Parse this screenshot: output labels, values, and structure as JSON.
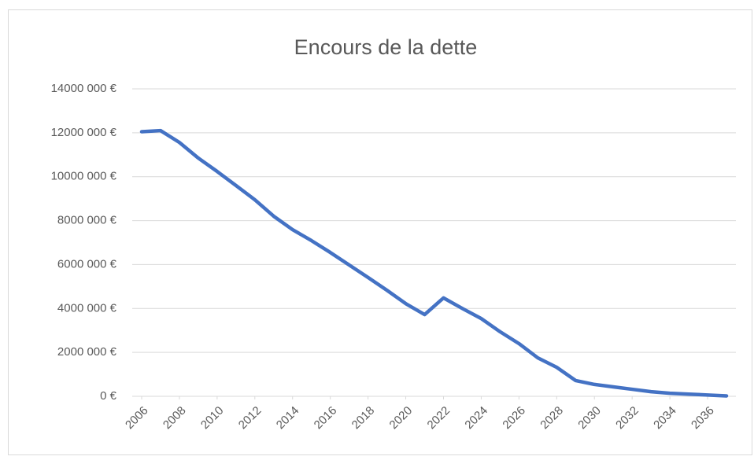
{
  "chart_data": {
    "type": "line",
    "title": "Encours de la dette",
    "x": [
      2006,
      2007,
      2008,
      2009,
      2010,
      2011,
      2012,
      2013,
      2014,
      2015,
      2016,
      2017,
      2018,
      2019,
      2020,
      2021,
      2022,
      2023,
      2024,
      2025,
      2026,
      2027,
      2028,
      2029,
      2030,
      2031,
      2032,
      2033,
      2034,
      2035,
      2036,
      2037
    ],
    "series": [
      {
        "name": "Encours de la dette",
        "color": "#4472c4",
        "values": [
          12050000,
          12100000,
          11560000,
          10850000,
          10240000,
          9600000,
          8950000,
          8200000,
          7590000,
          7090000,
          6550000,
          5980000,
          5410000,
          4830000,
          4220000,
          3720000,
          4480000,
          4000000,
          3540000,
          2940000,
          2400000,
          1750000,
          1320000,
          720000,
          540000,
          430000,
          320000,
          210000,
          140000,
          100000,
          60000,
          20000
        ]
      }
    ],
    "xlim": [
      2005.5,
      2037.5
    ],
    "xticks": [
      2006,
      2008,
      2010,
      2012,
      2014,
      2016,
      2018,
      2020,
      2022,
      2024,
      2026,
      2028,
      2030,
      2032,
      2034,
      2036
    ],
    "ylim": [
      0,
      14000000
    ],
    "yticks": [
      {
        "value": 0,
        "label": "0 €"
      },
      {
        "value": 2000000,
        "label": "2000 000 €"
      },
      {
        "value": 4000000,
        "label": "4000 000 €"
      },
      {
        "value": 6000000,
        "label": "6000 000 €"
      },
      {
        "value": 8000000,
        "label": "8000 000 €"
      },
      {
        "value": 10000000,
        "label": "10000 000 €"
      },
      {
        "value": 12000000,
        "label": "12000 000 €"
      },
      {
        "value": 14000000,
        "label": "14000 000 €"
      }
    ],
    "grid": true
  }
}
